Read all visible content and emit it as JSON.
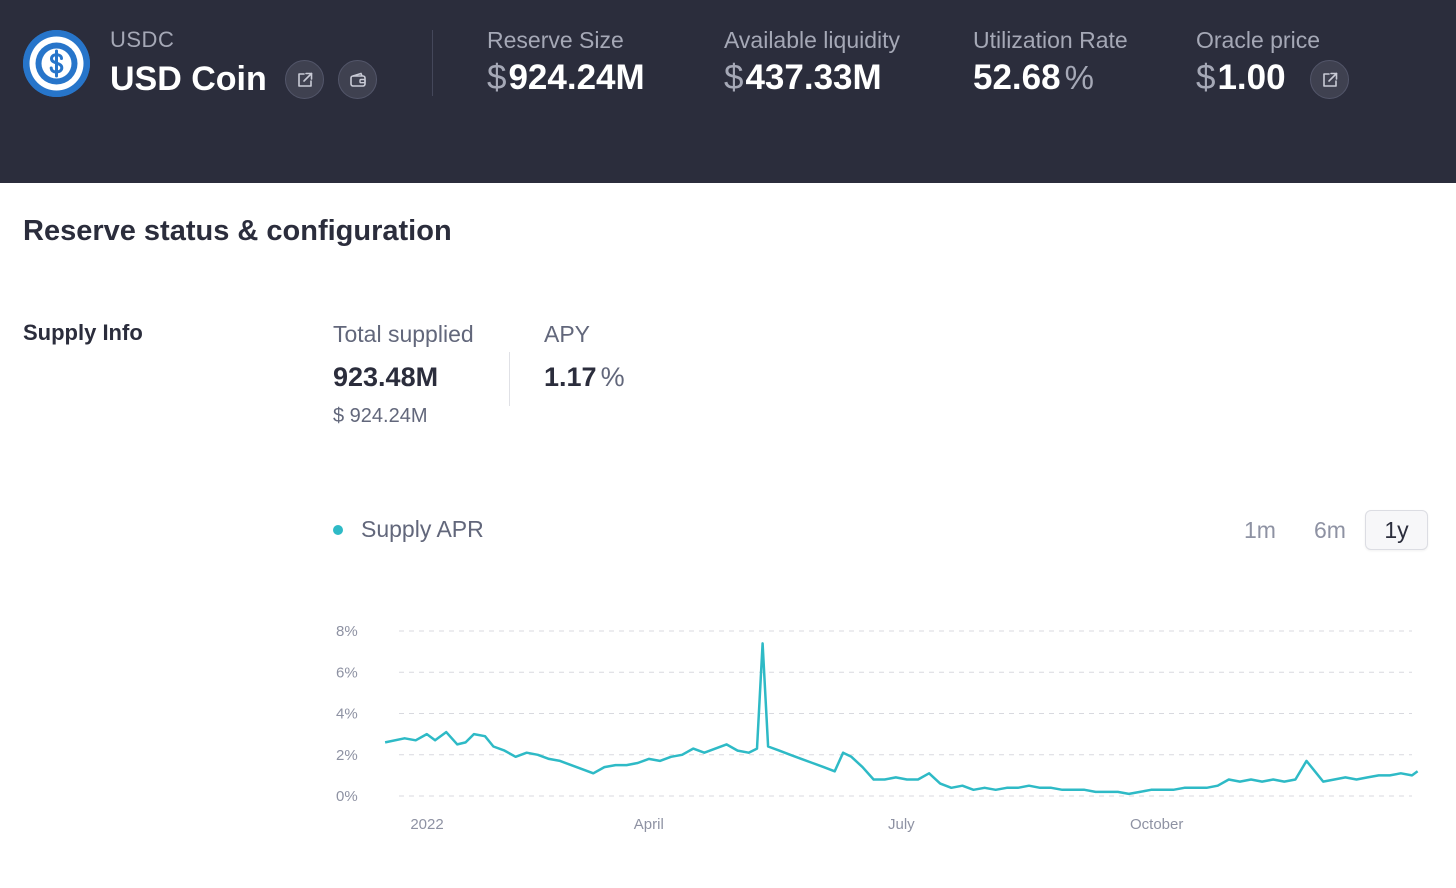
{
  "header": {
    "logo_icon": "usdc-coin-icon",
    "symbol": "USDC",
    "name": "USD Coin",
    "buttons": [
      {
        "icon": "external-link-icon"
      },
      {
        "icon": "wallet-icon"
      }
    ],
    "stats": {
      "reserve_size": {
        "label": "Reserve Size",
        "currency": "$",
        "value": "924.24M"
      },
      "available_liquidity": {
        "label": "Available liquidity",
        "currency": "$",
        "value": "437.33M"
      },
      "utilization_rate": {
        "label": "Utilization Rate",
        "value": "52.68",
        "unit": "%"
      },
      "oracle_price": {
        "label": "Oracle price",
        "currency": "$",
        "value": "1.00",
        "icon": "external-link-icon"
      }
    }
  },
  "main": {
    "section_title": "Reserve status & configuration",
    "supply_info": {
      "label": "Supply Info",
      "total_supplied": {
        "label": "Total supplied",
        "value": "923.48M",
        "usd": "$ 924.24M"
      },
      "apy": {
        "label": "APY",
        "value": "1.17",
        "unit": "%"
      }
    },
    "legend": {
      "label": "Supply APR",
      "color": "#2ebac6"
    },
    "ranges": [
      {
        "label": "1m",
        "active": false
      },
      {
        "label": "6m",
        "active": false
      },
      {
        "label": "1y",
        "active": true
      }
    ]
  },
  "colors": {
    "header_bg": "#2b2d3c",
    "line": "#2ebac6",
    "usdc_blue": "#2775ca"
  },
  "chart_data": {
    "type": "line",
    "x_range": [
      "2022-01-01",
      "2023-01-01"
    ],
    "x_ticks": [
      {
        "label": "2022",
        "date": "2022-01-01"
      },
      {
        "label": "April",
        "date": "2022-04-01"
      },
      {
        "label": "July",
        "date": "2022-07-01"
      },
      {
        "label": "October",
        "date": "2022-10-01"
      }
    ],
    "y_ticks": [
      "0%",
      "2%",
      "4%",
      "6%",
      "8%"
    ],
    "ylim": [
      0,
      8
    ],
    "grid": true,
    "series": [
      {
        "name": "Supply APR",
        "points": [
          [
            "2021-12-27",
            2.6
          ],
          [
            "2022-01-03",
            2.8
          ],
          [
            "2022-01-07",
            2.7
          ],
          [
            "2022-01-11",
            3.0
          ],
          [
            "2022-01-14",
            2.7
          ],
          [
            "2022-01-18",
            3.1
          ],
          [
            "2022-01-22",
            2.5
          ],
          [
            "2022-01-25",
            2.6
          ],
          [
            "2022-01-28",
            3.0
          ],
          [
            "2022-02-01",
            2.9
          ],
          [
            "2022-02-04",
            2.4
          ],
          [
            "2022-02-08",
            2.2
          ],
          [
            "2022-02-12",
            1.9
          ],
          [
            "2022-02-16",
            2.1
          ],
          [
            "2022-02-20",
            2.0
          ],
          [
            "2022-02-24",
            1.8
          ],
          [
            "2022-02-28",
            1.7
          ],
          [
            "2022-03-04",
            1.5
          ],
          [
            "2022-03-08",
            1.3
          ],
          [
            "2022-03-12",
            1.1
          ],
          [
            "2022-03-16",
            1.4
          ],
          [
            "2022-03-20",
            1.5
          ],
          [
            "2022-03-24",
            1.5
          ],
          [
            "2022-03-28",
            1.6
          ],
          [
            "2022-04-01",
            1.8
          ],
          [
            "2022-04-05",
            1.7
          ],
          [
            "2022-04-09",
            1.9
          ],
          [
            "2022-04-13",
            2.0
          ],
          [
            "2022-04-17",
            2.3
          ],
          [
            "2022-04-21",
            2.1
          ],
          [
            "2022-04-25",
            2.3
          ],
          [
            "2022-04-29",
            2.5
          ],
          [
            "2022-05-03",
            2.2
          ],
          [
            "2022-05-07",
            2.1
          ],
          [
            "2022-05-10",
            2.3
          ],
          [
            "2022-05-12",
            7.4
          ],
          [
            "2022-05-14",
            2.4
          ],
          [
            "2022-05-18",
            2.2
          ],
          [
            "2022-05-22",
            2.0
          ],
          [
            "2022-05-26",
            1.8
          ],
          [
            "2022-05-30",
            1.6
          ],
          [
            "2022-06-03",
            1.4
          ],
          [
            "2022-06-07",
            1.2
          ],
          [
            "2022-06-10",
            2.1
          ],
          [
            "2022-06-13",
            1.9
          ],
          [
            "2022-06-17",
            1.4
          ],
          [
            "2022-06-21",
            0.8
          ],
          [
            "2022-06-25",
            0.8
          ],
          [
            "2022-06-29",
            0.9
          ],
          [
            "2022-07-03",
            0.8
          ],
          [
            "2022-07-07",
            0.8
          ],
          [
            "2022-07-11",
            1.1
          ],
          [
            "2022-07-15",
            0.6
          ],
          [
            "2022-07-19",
            0.4
          ],
          [
            "2022-07-23",
            0.5
          ],
          [
            "2022-07-27",
            0.3
          ],
          [
            "2022-07-31",
            0.4
          ],
          [
            "2022-08-04",
            0.3
          ],
          [
            "2022-08-08",
            0.4
          ],
          [
            "2022-08-12",
            0.4
          ],
          [
            "2022-08-16",
            0.5
          ],
          [
            "2022-08-20",
            0.4
          ],
          [
            "2022-08-24",
            0.4
          ],
          [
            "2022-08-28",
            0.3
          ],
          [
            "2022-09-01",
            0.3
          ],
          [
            "2022-09-05",
            0.3
          ],
          [
            "2022-09-09",
            0.2
          ],
          [
            "2022-09-13",
            0.2
          ],
          [
            "2022-09-17",
            0.2
          ],
          [
            "2022-09-21",
            0.1
          ],
          [
            "2022-09-25",
            0.2
          ],
          [
            "2022-09-29",
            0.3
          ],
          [
            "2022-10-03",
            0.3
          ],
          [
            "2022-10-07",
            0.3
          ],
          [
            "2022-10-11",
            0.4
          ],
          [
            "2022-10-15",
            0.4
          ],
          [
            "2022-10-19",
            0.4
          ],
          [
            "2022-10-23",
            0.5
          ],
          [
            "2022-10-27",
            0.8
          ],
          [
            "2022-10-31",
            0.7
          ],
          [
            "2022-11-04",
            0.8
          ],
          [
            "2022-11-08",
            0.7
          ],
          [
            "2022-11-12",
            0.8
          ],
          [
            "2022-11-16",
            0.7
          ],
          [
            "2022-11-20",
            0.8
          ],
          [
            "2022-11-24",
            1.7
          ],
          [
            "2022-11-27",
            1.2
          ],
          [
            "2022-11-30",
            0.7
          ],
          [
            "2022-12-04",
            0.8
          ],
          [
            "2022-12-08",
            0.9
          ],
          [
            "2022-12-12",
            0.8
          ],
          [
            "2022-12-16",
            0.9
          ],
          [
            "2022-12-20",
            1.0
          ],
          [
            "2022-12-24",
            1.0
          ],
          [
            "2022-12-28",
            1.1
          ],
          [
            "2023-01-01",
            1.0
          ],
          [
            "2023-01-03",
            1.2
          ]
        ]
      }
    ]
  }
}
